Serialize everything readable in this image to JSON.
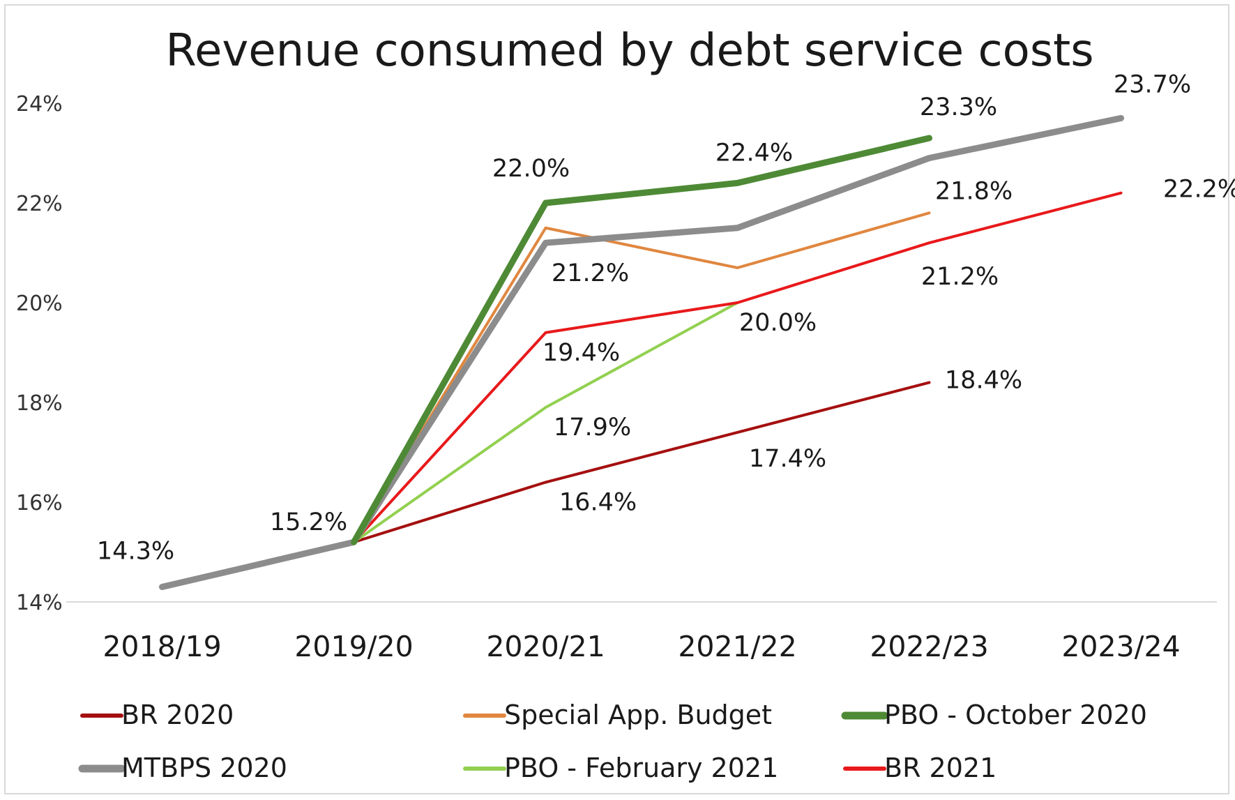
{
  "chart_data": {
    "type": "line",
    "title": "Revenue consumed by debt service costs",
    "xlabel": "",
    "ylabel": "",
    "categories": [
      "2018/19",
      "2019/20",
      "2020/21",
      "2021/22",
      "2022/23",
      "2023/24"
    ],
    "yticks": [
      "14%",
      "16%",
      "18%",
      "20%",
      "22%",
      "24%"
    ],
    "ylim": [
      14,
      24
    ],
    "grid": false,
    "legend_position": "bottom",
    "series": [
      {
        "name": "BR 2020",
        "color": "#a50f0f",
        "width": 4,
        "values": [
          null,
          15.2,
          16.4,
          17.4,
          18.4,
          null
        ]
      },
      {
        "name": "Special App. Budget",
        "color": "#e0873f",
        "width": 4,
        "values": [
          null,
          15.2,
          21.5,
          20.7,
          21.8,
          null
        ]
      },
      {
        "name": "PBO - October 2020",
        "color": "#4e8a35",
        "width": 9,
        "values": [
          null,
          15.2,
          22.0,
          22.4,
          23.3,
          null
        ]
      },
      {
        "name": "MTBPS 2020",
        "color": "#8c8c8c",
        "width": 9,
        "values": [
          14.3,
          15.2,
          21.2,
          21.5,
          22.9,
          23.7
        ]
      },
      {
        "name": "PBO - February 2021",
        "color": "#92d050",
        "width": 4,
        "values": [
          null,
          15.2,
          17.9,
          20.0,
          null,
          null
        ]
      },
      {
        "name": "BR 2021",
        "color": "#e8191b",
        "width": 4,
        "values": [
          null,
          15.2,
          19.4,
          20.0,
          21.2,
          22.2
        ]
      }
    ],
    "data_labels": [
      {
        "text": "14.3%",
        "category": "2018/19",
        "value": 14.3,
        "series": "MTBPS 2020"
      },
      {
        "text": "15.2%",
        "category": "2019/20",
        "value": 15.2,
        "series": "MTBPS 2020"
      },
      {
        "text": "22.0%",
        "category": "2020/21",
        "value": 22.0,
        "series": "PBO - October 2020"
      },
      {
        "text": "22.4%",
        "category": "2021/22",
        "value": 22.4,
        "series": "PBO - October 2020"
      },
      {
        "text": "23.3%",
        "category": "2022/23",
        "value": 23.3,
        "series": "PBO - October 2020"
      },
      {
        "text": "23.7%",
        "category": "2023/24",
        "value": 23.7,
        "series": "MTBPS 2020"
      },
      {
        "text": "21.8%",
        "category": "2022/23",
        "value": 21.8,
        "series": "Special App. Budget"
      },
      {
        "text": "22.2%",
        "category": "2023/24",
        "value": 22.2,
        "series": "BR 2021"
      },
      {
        "text": "21.2%",
        "category": "2020/21",
        "value": 21.2,
        "series": "MTBPS 2020"
      },
      {
        "text": "21.2%",
        "category": "2022/23",
        "value": 21.2,
        "series": "BR 2021"
      },
      {
        "text": "20.0%",
        "category": "2021/22",
        "value": 20.0,
        "series": "BR 2021"
      },
      {
        "text": "19.4%",
        "category": "2020/21",
        "value": 19.4,
        "series": "BR 2021"
      },
      {
        "text": "18.4%",
        "category": "2022/23",
        "value": 18.4,
        "series": "BR 2020"
      },
      {
        "text": "17.9%",
        "category": "2020/21",
        "value": 17.9,
        "series": "PBO - February 2021"
      },
      {
        "text": "17.4%",
        "category": "2021/22",
        "value": 17.4,
        "series": "BR 2020"
      },
      {
        "text": "16.4%",
        "category": "2020/21",
        "value": 16.4,
        "series": "BR 2020"
      }
    ]
  }
}
